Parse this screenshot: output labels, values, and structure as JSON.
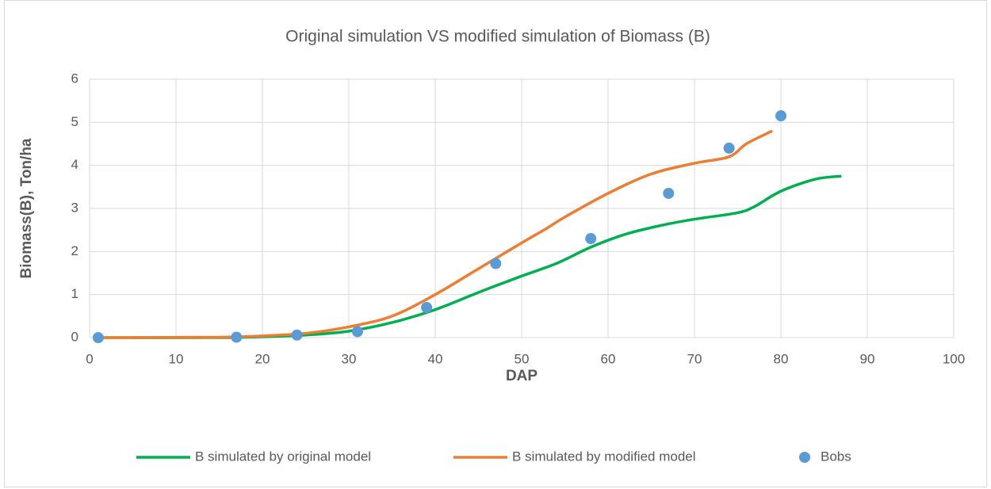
{
  "chart_data": {
    "type": "line",
    "title": "Original simulation VS modified simulation of Biomass (B)",
    "xlabel": "DAP",
    "ylabel": "Biomass(B), Ton/ha",
    "xlim": [
      0,
      100
    ],
    "xticks": [
      0,
      10,
      20,
      30,
      40,
      50,
      60,
      70,
      80,
      90,
      100
    ],
    "ylim": [
      0,
      6
    ],
    "yticks": [
      0,
      1,
      2,
      3,
      4,
      5,
      6
    ],
    "grid": true,
    "legend": "bottom",
    "series": [
      {
        "name": "B  simulated by original model",
        "type": "line",
        "color": "#00b050",
        "x": [
          1,
          15,
          20,
          25,
          30,
          35,
          40,
          45,
          50,
          54,
          58,
          62,
          66,
          70,
          75,
          77,
          80,
          84,
          87
        ],
        "values": [
          0,
          0,
          0.02,
          0.06,
          0.15,
          0.35,
          0.65,
          1.05,
          1.43,
          1.72,
          2.1,
          2.4,
          2.6,
          2.75,
          2.9,
          3.05,
          3.4,
          3.68,
          3.75
        ]
      },
      {
        "name": "B simulated by modified model",
        "type": "line",
        "color": "#ed7d31",
        "x": [
          1,
          15,
          20,
          25,
          30,
          35,
          40,
          45,
          50,
          53,
          55,
          60,
          65,
          70,
          74,
          76,
          79
        ],
        "values": [
          0,
          0.01,
          0.04,
          0.1,
          0.25,
          0.5,
          1.0,
          1.6,
          2.2,
          2.55,
          2.8,
          3.35,
          3.8,
          4.05,
          4.2,
          4.5,
          4.8
        ]
      },
      {
        "name": "Bobs",
        "type": "scatter",
        "color": "#5b9bd5",
        "x": [
          1,
          17,
          24,
          31,
          39,
          47,
          58,
          67,
          74,
          80
        ],
        "values": [
          0,
          0.01,
          0.06,
          0.14,
          0.7,
          1.72,
          2.3,
          3.35,
          4.4,
          5.15
        ]
      }
    ]
  }
}
